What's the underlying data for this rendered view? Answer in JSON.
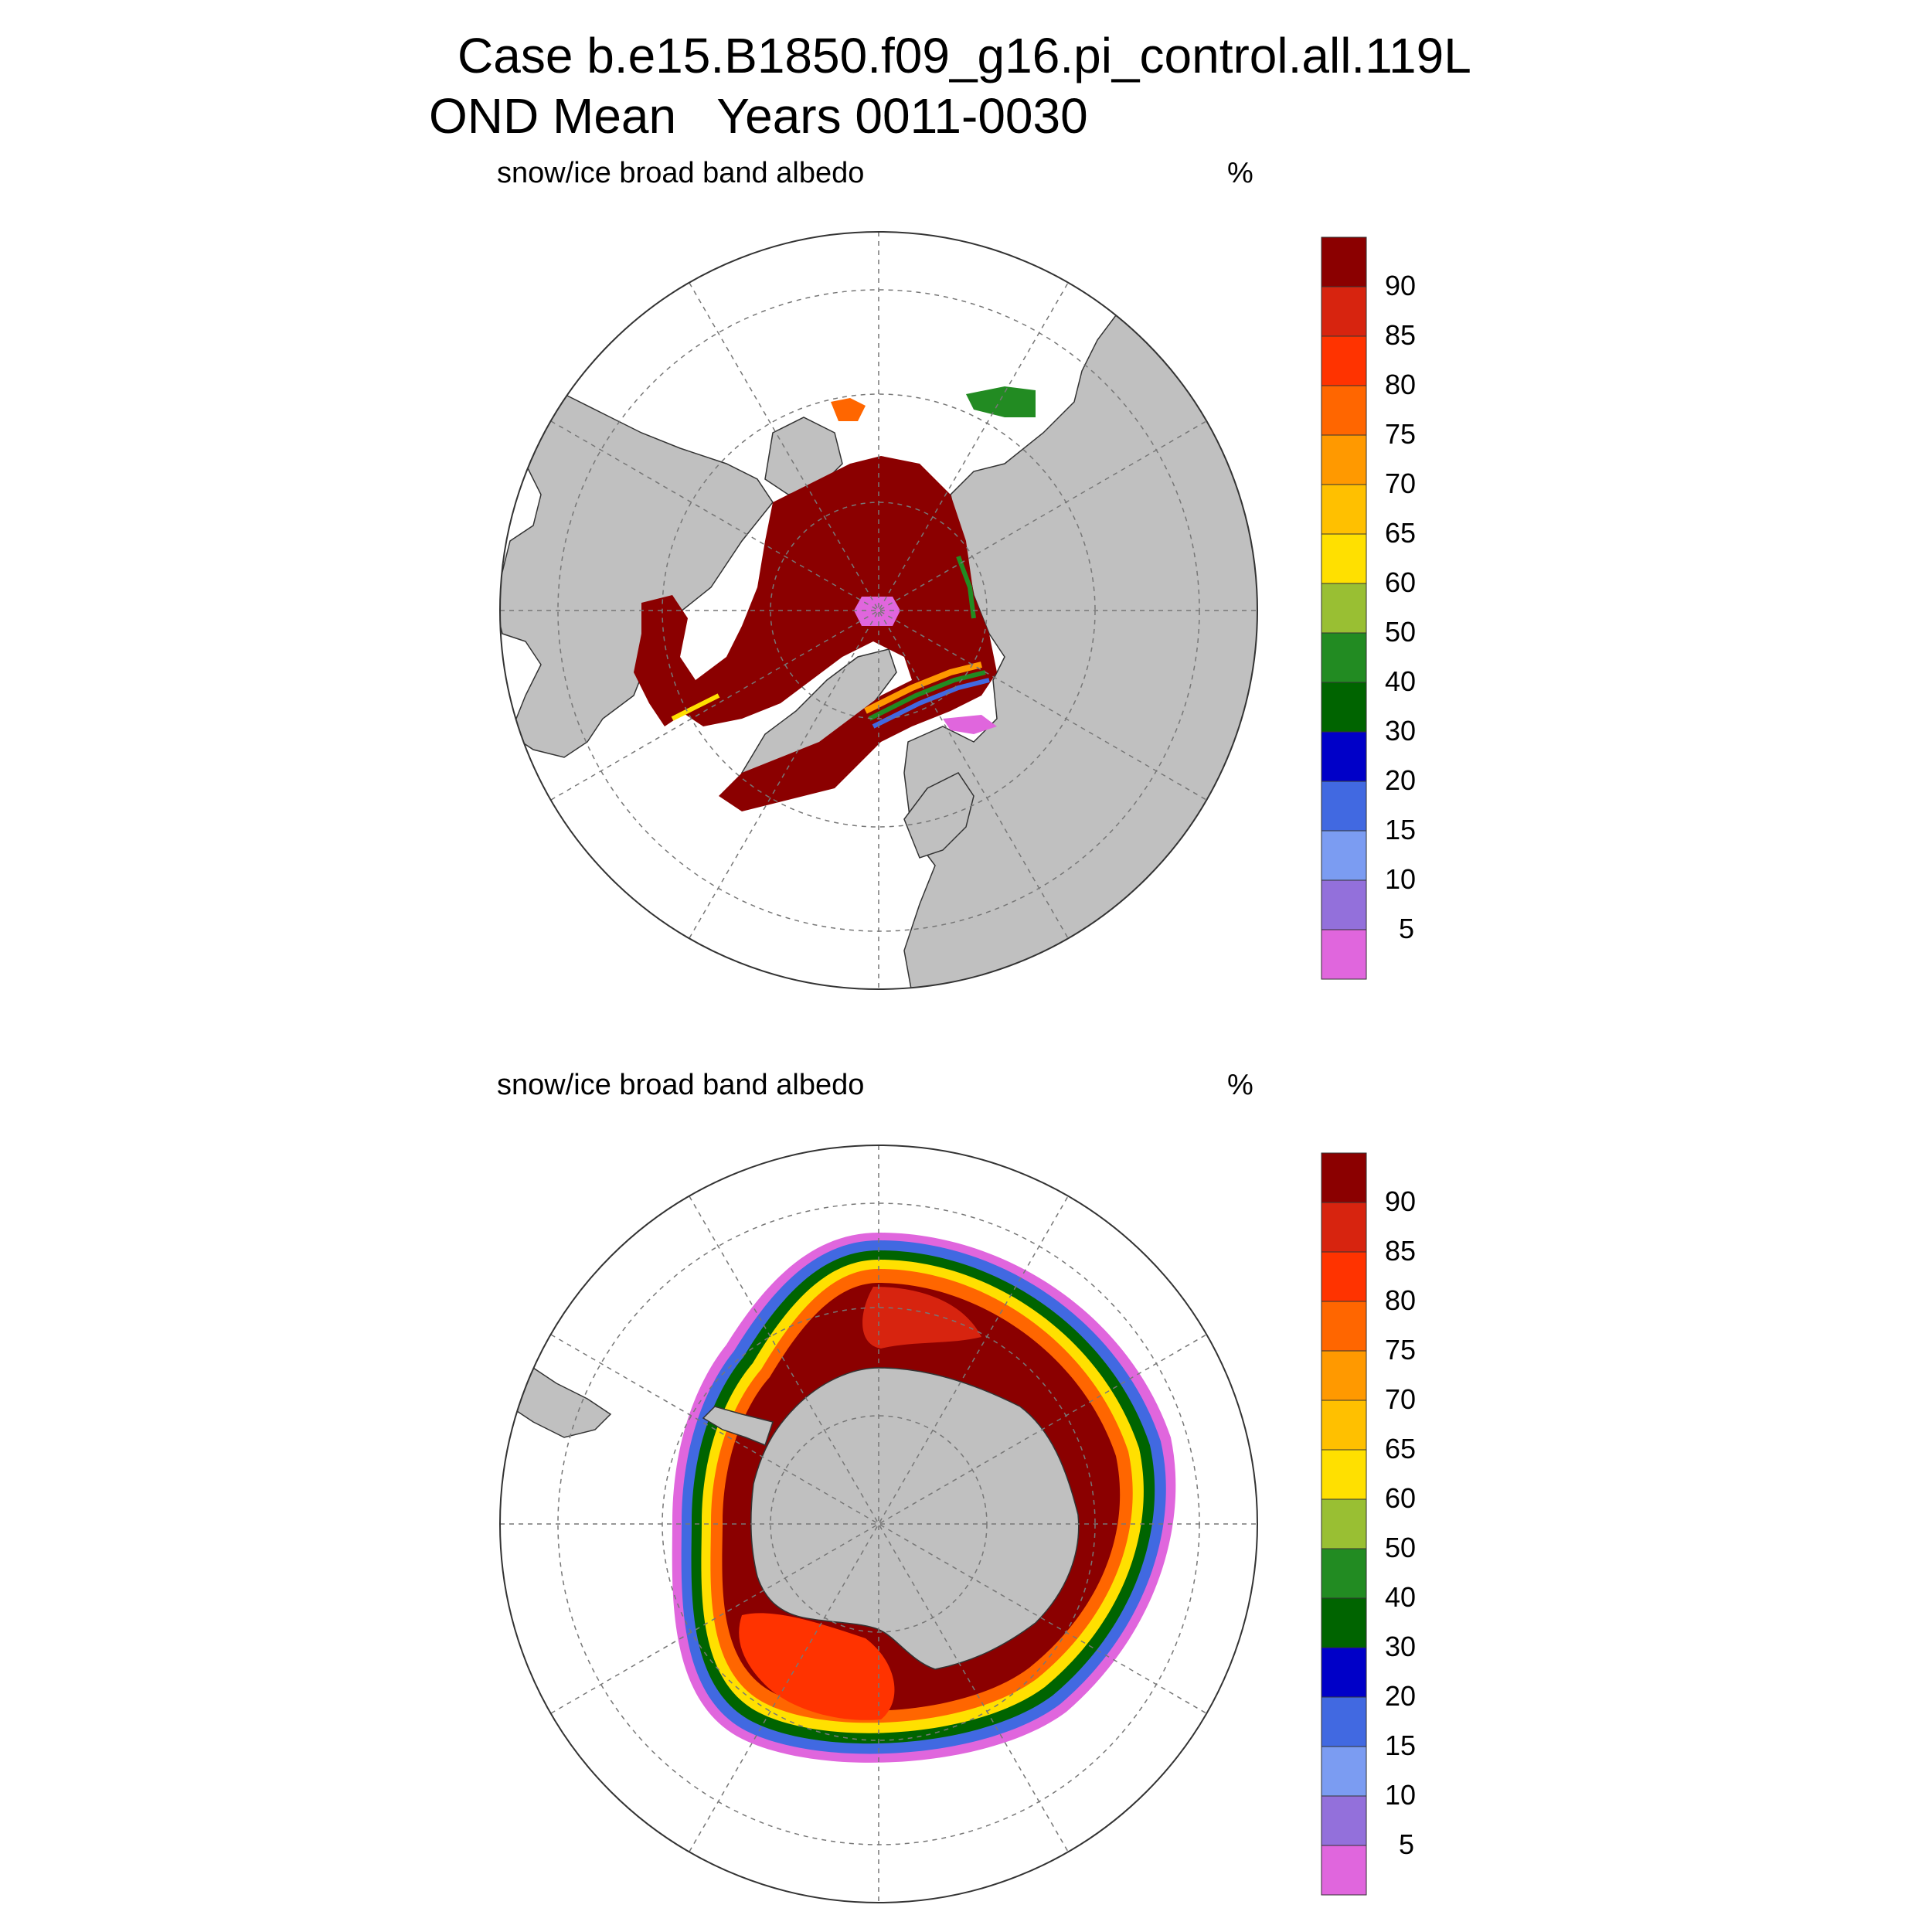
{
  "title": {
    "line1": "Case b.e15.B1850.f09_g16.pi_control.all.119L",
    "line2": "OND Mean   Years 0011-0030"
  },
  "panels": [
    {
      "hemisphere": "north",
      "label": "snow/ice broad band albedo",
      "unit": "%"
    },
    {
      "hemisphere": "south",
      "label": "snow/ice broad band albedo",
      "unit": "%"
    }
  ],
  "colorbar": {
    "levels": [
      "90",
      "85",
      "80",
      "75",
      "70",
      "65",
      "60",
      "50",
      "40",
      "30",
      "20",
      "15",
      "10",
      "5"
    ],
    "colors": [
      "#8b0000",
      "#d7240f",
      "#ff3300",
      "#ff6600",
      "#ff9900",
      "#ffc000",
      "#ffe000",
      "#99bf33",
      "#228b22",
      "#006400",
      "#0000c8",
      "#4169e1",
      "#7b9cf2",
      "#9370db",
      "#e066dd"
    ]
  },
  "map_style": {
    "land_color": "#c0c0c0",
    "ocean_color": "#ffffff",
    "grid_style": "dashed"
  }
}
